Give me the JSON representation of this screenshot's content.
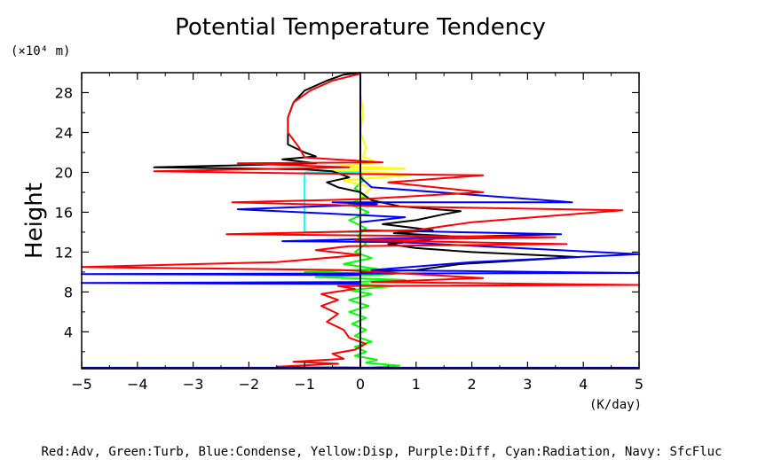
{
  "chart_data": {
    "type": "line",
    "title": "Potential Temperature Tendency",
    "ylabel": "Height",
    "yunit": "(×10⁴ m)",
    "xunit": "(K/day)",
    "legend_text": "Red:Adv, Green:Turb, Blue:Condense, Yellow:Disp, Purple:Diff, Cyan:Radiation, Navy: SfcFluc",
    "xlim": [
      -5,
      5
    ],
    "ylim": [
      0.3,
      30
    ],
    "x_ticks": [
      "−5",
      "−4",
      "−3",
      "−2",
      "−1",
      "0",
      "1",
      "2",
      "3",
      "4",
      "5"
    ],
    "x_tick_values": [
      -5,
      -4,
      -3,
      -2,
      -1,
      0,
      1,
      2,
      3,
      4,
      5
    ],
    "y_ticks": [
      "4",
      "8",
      "12",
      "16",
      "20",
      "24",
      "28"
    ],
    "y_tick_values": [
      4,
      8,
      12,
      16,
      20,
      24,
      28
    ],
    "zero_line": true,
    "series": [
      {
        "color": "#00ff00",
        "points": [
          [
            0.1,
            0.4
          ],
          [
            0.7,
            0.6
          ],
          [
            0.1,
            0.9
          ],
          [
            0.3,
            1.2
          ],
          [
            -0.1,
            1.6
          ],
          [
            0.1,
            2.0
          ],
          [
            -0.1,
            2.5
          ],
          [
            0.2,
            3.0
          ],
          [
            -0.1,
            3.6
          ],
          [
            0.1,
            4.2
          ],
          [
            -0.15,
            4.8
          ],
          [
            0.1,
            5.4
          ],
          [
            -0.2,
            6.0
          ],
          [
            0.15,
            6.6
          ],
          [
            -0.2,
            7.2
          ],
          [
            0.2,
            7.8
          ],
          [
            -0.2,
            8.2
          ],
          [
            0.6,
            8.6
          ],
          [
            -0.5,
            8.9
          ],
          [
            0.8,
            9.2
          ],
          [
            -0.8,
            9.5
          ],
          [
            0.6,
            9.8
          ],
          [
            -1.0,
            10.0
          ],
          [
            0.3,
            10.3
          ],
          [
            -0.3,
            10.8
          ],
          [
            0.2,
            11.4
          ],
          [
            -0.1,
            12.0
          ],
          [
            0.1,
            12.8
          ],
          [
            -0.05,
            13.6
          ],
          [
            0.1,
            14.4
          ],
          [
            -0.2,
            15.2
          ],
          [
            0.15,
            16.0
          ],
          [
            -0.2,
            16.8
          ],
          [
            0.1,
            17.6
          ],
          [
            -0.1,
            18.4
          ],
          [
            0.05,
            19.2
          ],
          [
            0.0,
            20.0
          ]
        ]
      },
      {
        "color": "#ffff00",
        "points": [
          [
            0.0,
            17.5
          ],
          [
            0.2,
            18.5
          ],
          [
            -0.3,
            19.2
          ],
          [
            1.0,
            19.8
          ],
          [
            -0.5,
            20.2
          ],
          [
            0.8,
            20.4
          ],
          [
            -0.4,
            20.6
          ],
          [
            0.3,
            21.0
          ],
          [
            0.05,
            21.6
          ],
          [
            0.1,
            22.5
          ],
          [
            0.0,
            24.0
          ],
          [
            0.05,
            26.0
          ],
          [
            0.0,
            28.0
          ],
          [
            0.0,
            29.5
          ]
        ]
      },
      {
        "color": "#00ffff",
        "points": [
          [
            0.0,
            14.0
          ],
          [
            -1.0,
            14.0
          ],
          [
            -1.0,
            20.0
          ],
          [
            0.0,
            20.0
          ]
        ]
      },
      {
        "color": "#000000",
        "points": [
          [
            0.0,
            0.4
          ],
          [
            0.0,
            9.0
          ],
          [
            0.0,
            10.0
          ],
          [
            1.0,
            10.2
          ],
          [
            1.8,
            10.8
          ],
          [
            3.9,
            11.5
          ],
          [
            2.0,
            12.0
          ],
          [
            1.0,
            12.4
          ],
          [
            0.5,
            12.8
          ],
          [
            1.2,
            13.2
          ],
          [
            1.6,
            13.6
          ],
          [
            0.6,
            13.9
          ],
          [
            1.3,
            14.2
          ],
          [
            0.4,
            14.8
          ],
          [
            1.0,
            15.2
          ],
          [
            1.5,
            15.8
          ],
          [
            1.8,
            16.1
          ],
          [
            0.7,
            16.6
          ],
          [
            0.2,
            17.2
          ],
          [
            0.0,
            18.0
          ],
          [
            -0.4,
            18.5
          ],
          [
            -0.6,
            19.0
          ],
          [
            -0.2,
            19.5
          ],
          [
            -0.5,
            20.1
          ],
          [
            -1.0,
            20.3
          ],
          [
            -3.7,
            20.5
          ],
          [
            -0.8,
            20.9
          ],
          [
            -1.4,
            21.3
          ],
          [
            -0.8,
            21.6
          ],
          [
            -1.0,
            22.0
          ],
          [
            -1.3,
            22.8
          ],
          [
            -1.3,
            24.0
          ],
          [
            -1.3,
            25.5
          ],
          [
            -1.2,
            27.0
          ],
          [
            -1.0,
            28.2
          ],
          [
            -0.6,
            29.2
          ],
          [
            -0.3,
            29.8
          ],
          [
            0.0,
            30.0
          ]
        ]
      },
      {
        "color": "#0000ff",
        "points": [
          [
            0.0,
            0.4
          ],
          [
            0.0,
            8.8
          ],
          [
            -5.0,
            8.9
          ],
          [
            0.0,
            9.0
          ],
          [
            0.0,
            9.7
          ],
          [
            -5.0,
            9.8
          ],
          [
            5.0,
            9.9
          ],
          [
            0.2,
            10.2
          ],
          [
            2.0,
            11.0
          ],
          [
            3.5,
            11.4
          ],
          [
            5.0,
            11.8
          ],
          [
            0.7,
            13.0
          ],
          [
            -1.4,
            13.1
          ],
          [
            3.6,
            13.8
          ],
          [
            0.0,
            14.2
          ],
          [
            0.0,
            15.0
          ],
          [
            0.8,
            15.5
          ],
          [
            -2.2,
            16.3
          ],
          [
            0.3,
            16.8
          ],
          [
            -0.5,
            17.0
          ],
          [
            3.8,
            17.0
          ],
          [
            0.2,
            18.5
          ],
          [
            0.0,
            19.5
          ],
          [
            0.0,
            29.8
          ]
        ]
      },
      {
        "color": "#ff0000",
        "points": [
          [
            0.1,
            0.4
          ],
          [
            -1.5,
            0.5
          ],
          [
            -0.4,
            0.8
          ],
          [
            -1.2,
            1.0
          ],
          [
            -0.3,
            1.3
          ],
          [
            -0.5,
            1.8
          ],
          [
            -0.1,
            2.2
          ],
          [
            0.1,
            2.8
          ],
          [
            -0.2,
            3.4
          ],
          [
            -0.3,
            4.2
          ],
          [
            -0.6,
            5.0
          ],
          [
            -0.4,
            5.8
          ],
          [
            -0.7,
            6.6
          ],
          [
            -0.4,
            7.2
          ],
          [
            -0.7,
            7.8
          ],
          [
            -0.1,
            8.3
          ],
          [
            -0.4,
            8.6
          ],
          [
            5.0,
            8.7
          ],
          [
            0.2,
            9.0
          ],
          [
            2.2,
            9.4
          ],
          [
            -0.3,
            10.2
          ],
          [
            -5.0,
            10.5
          ],
          [
            -1.5,
            11.0
          ],
          [
            0.0,
            11.7
          ],
          [
            -0.8,
            12.2
          ],
          [
            -0.2,
            12.6
          ],
          [
            3.7,
            12.8
          ],
          [
            -0.1,
            13.2
          ],
          [
            3.5,
            13.5
          ],
          [
            -2.4,
            13.8
          ],
          [
            1.0,
            14.2
          ],
          [
            2.0,
            15.0
          ],
          [
            4.7,
            16.2
          ],
          [
            0.4,
            16.6
          ],
          [
            -2.3,
            17.0
          ],
          [
            0.0,
            17.3
          ],
          [
            2.2,
            18.0
          ],
          [
            0.5,
            19.0
          ],
          [
            2.2,
            19.7
          ],
          [
            -1.0,
            19.9
          ],
          [
            -3.7,
            20.1
          ],
          [
            -0.2,
            20.5
          ],
          [
            -2.2,
            20.9
          ],
          [
            0.4,
            21.0
          ],
          [
            -1.0,
            21.5
          ],
          [
            -1.1,
            22.5
          ],
          [
            -1.3,
            24.0
          ],
          [
            -1.3,
            25.5
          ],
          [
            -1.2,
            27.0
          ],
          [
            -0.9,
            28.2
          ],
          [
            -0.5,
            29.2
          ],
          [
            0.0,
            29.9
          ]
        ]
      },
      {
        "color": "#000080",
        "points": [
          [
            -5.0,
            0.4
          ],
          [
            5.0,
            0.4
          ]
        ]
      }
    ]
  }
}
